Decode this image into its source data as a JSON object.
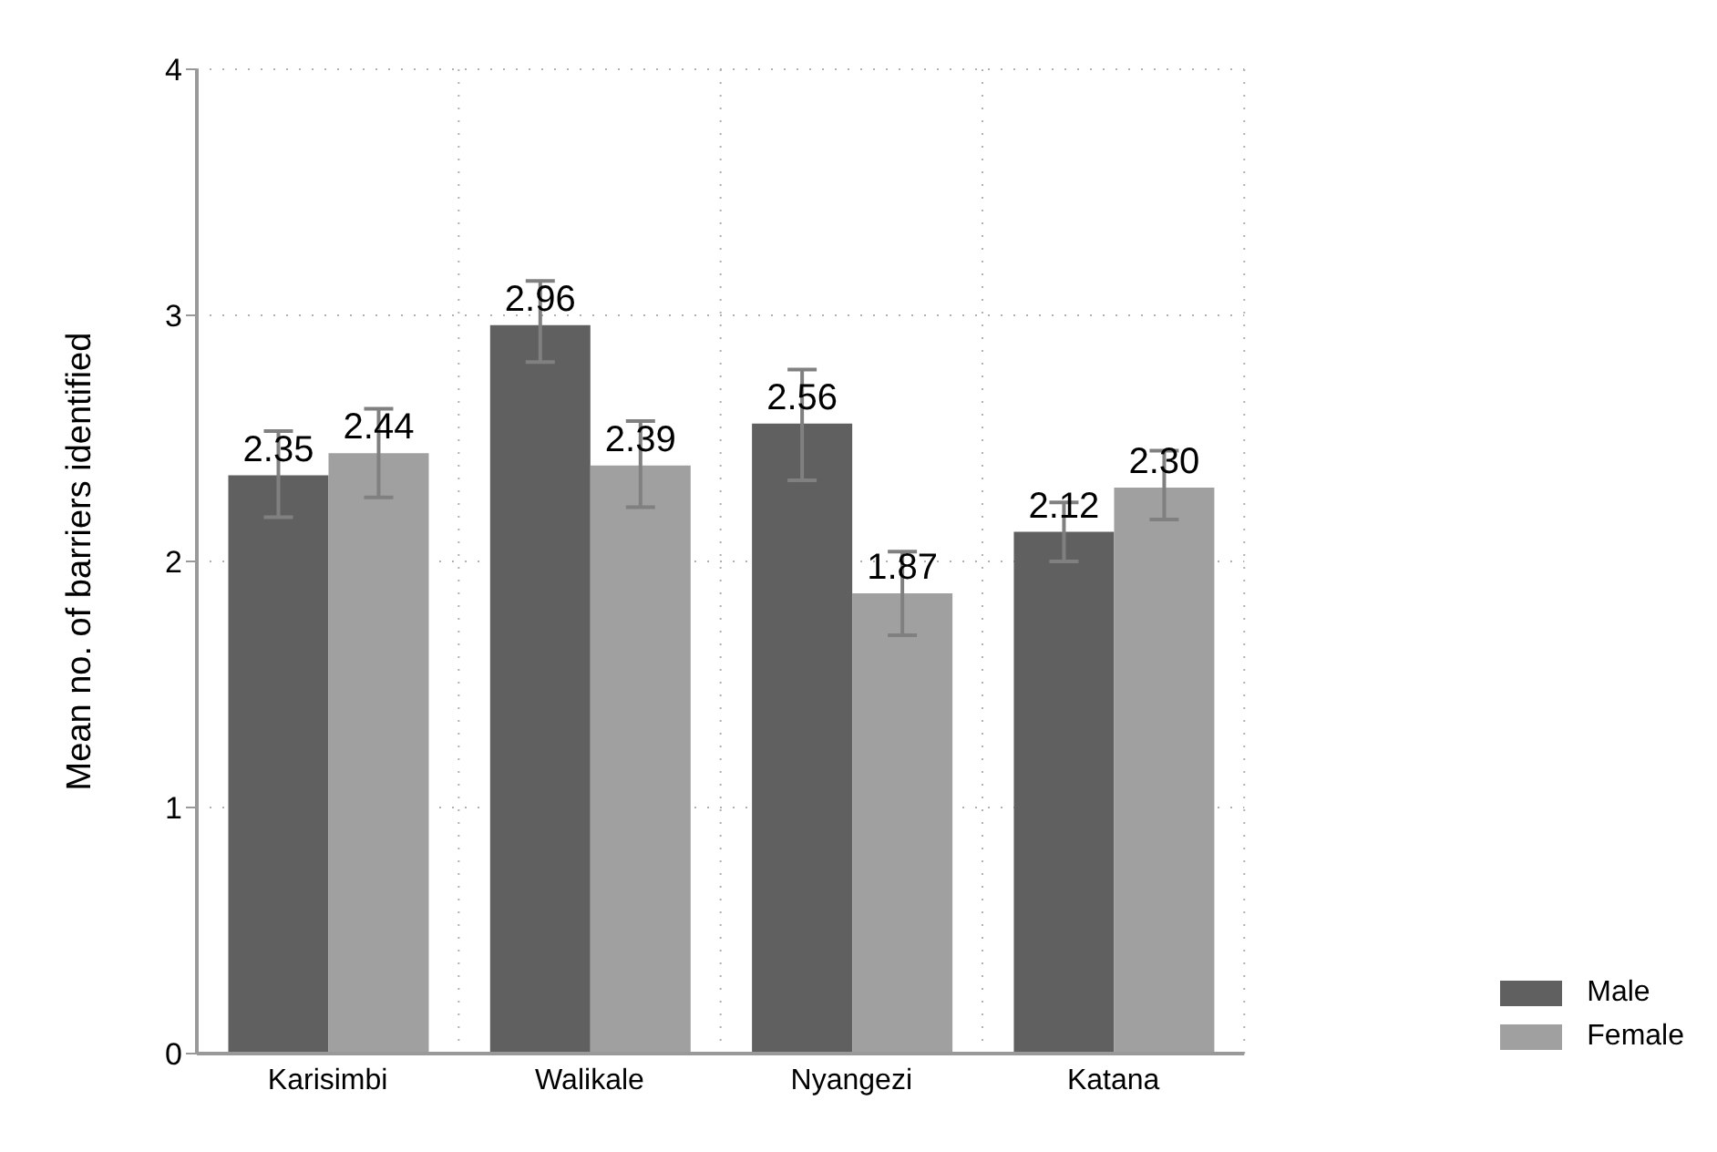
{
  "chart_data": {
    "type": "bar",
    "ylabel": "Mean no. of barriers identified",
    "categories": [
      "Karisimbi",
      "Walikale",
      "Nyangezi",
      "Katana"
    ],
    "series": [
      {
        "name": "Male",
        "color": "#606060",
        "values": [
          2.35,
          2.96,
          2.56,
          2.12
        ],
        "value_labels": [
          "2.35",
          "2.96",
          "2.56",
          "2.12"
        ],
        "errors": [
          [
            2.18,
            2.53
          ],
          [
            2.81,
            3.14
          ],
          [
            2.33,
            2.78
          ],
          [
            2.0,
            2.24
          ]
        ]
      },
      {
        "name": "Female",
        "color": "#a0a0a0",
        "values": [
          2.44,
          2.39,
          1.87,
          2.3
        ],
        "value_labels": [
          "2.44",
          "2.39",
          "1.87",
          "2.30"
        ],
        "errors": [
          [
            2.26,
            2.62
          ],
          [
            2.22,
            2.57
          ],
          [
            1.7,
            2.04
          ],
          [
            2.17,
            2.45
          ]
        ]
      }
    ],
    "ylim": [
      0,
      4
    ],
    "yticks": [
      0,
      1,
      2,
      3,
      4
    ],
    "grid": true,
    "legend": "bottom right"
  }
}
